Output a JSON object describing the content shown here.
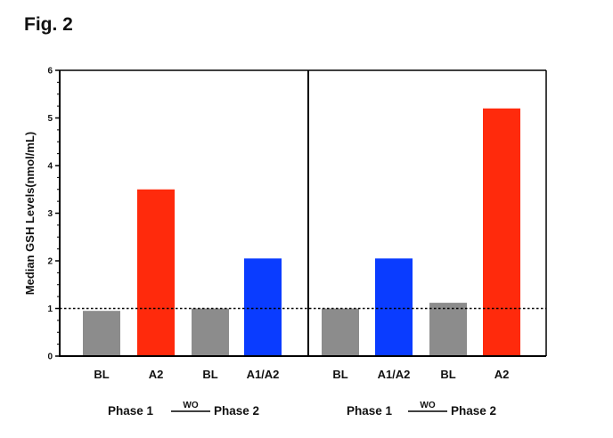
{
  "figure_label": "Fig. 2",
  "chart_data": {
    "type": "bar",
    "title": "",
    "ylabel": "Median GSH Levels(nmol/mL)",
    "ylim": [
      0,
      6
    ],
    "yticks": [
      "0",
      "1",
      "2",
      "3",
      "4",
      "5",
      "6"
    ],
    "reference_line": 1,
    "grid": false,
    "colors": {
      "BL": "#8c8c8c",
      "A2": "#ff2a0c",
      "A1/A2": "#0a3cff"
    },
    "panels": [
      {
        "phase_left": "Phase 1",
        "washout": "WO",
        "phase_right": "Phase 2",
        "bars": [
          {
            "category": "BL",
            "value": 0.95
          },
          {
            "category": "A2",
            "value": 3.5
          },
          {
            "category": "BL",
            "value": 1.0
          },
          {
            "category": "A1/A2",
            "value": 2.05
          }
        ]
      },
      {
        "phase_left": "Phase 1",
        "washout": "WO",
        "phase_right": "Phase 2",
        "bars": [
          {
            "category": "BL",
            "value": 1.0
          },
          {
            "category": "A1/A2",
            "value": 2.05
          },
          {
            "category": "BL",
            "value": 1.12
          },
          {
            "category": "A2",
            "value": 5.2
          }
        ]
      }
    ]
  }
}
